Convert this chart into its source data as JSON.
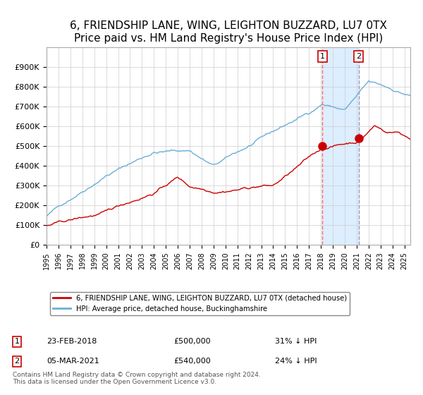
{
  "title": "6, FRIENDSHIP LANE, WING, LEIGHTON BUZZARD, LU7 0TX",
  "subtitle": "Price paid vs. HM Land Registry's House Price Index (HPI)",
  "hpi_label": "HPI: Average price, detached house, Buckinghamshire",
  "property_label": "6, FRIENDSHIP LANE, WING, LEIGHTON BUZZARD, LU7 0TX (detached house)",
  "transaction1_date": "23-FEB-2018",
  "transaction1_price": 500000,
  "transaction1_pct": "31% ↓ HPI",
  "transaction2_date": "05-MAR-2021",
  "transaction2_price": 540000,
  "transaction2_pct": "24% ↓ HPI",
  "copyright": "Contains HM Land Registry data © Crown copyright and database right 2024.\nThis data is licensed under the Open Government Licence v3.0.",
  "ylim": [
    0,
    1000000
  ],
  "yticks": [
    0,
    100000,
    200000,
    300000,
    400000,
    500000,
    600000,
    700000,
    800000,
    900000
  ],
  "hpi_color": "#6baed6",
  "property_color": "#cc0000",
  "marker_color": "#cc0000",
  "vline1_color": "#ff6666",
  "vline2_color": "#9999bb",
  "bg_highlight_color": "#ddeeff",
  "grid_color": "#cccccc",
  "title_fontsize": 11,
  "subtitle_fontsize": 9.5,
  "xmin": 1995,
  "xmax": 2025.5,
  "transaction1_x": 2018.13,
  "transaction2_x": 2021.17
}
